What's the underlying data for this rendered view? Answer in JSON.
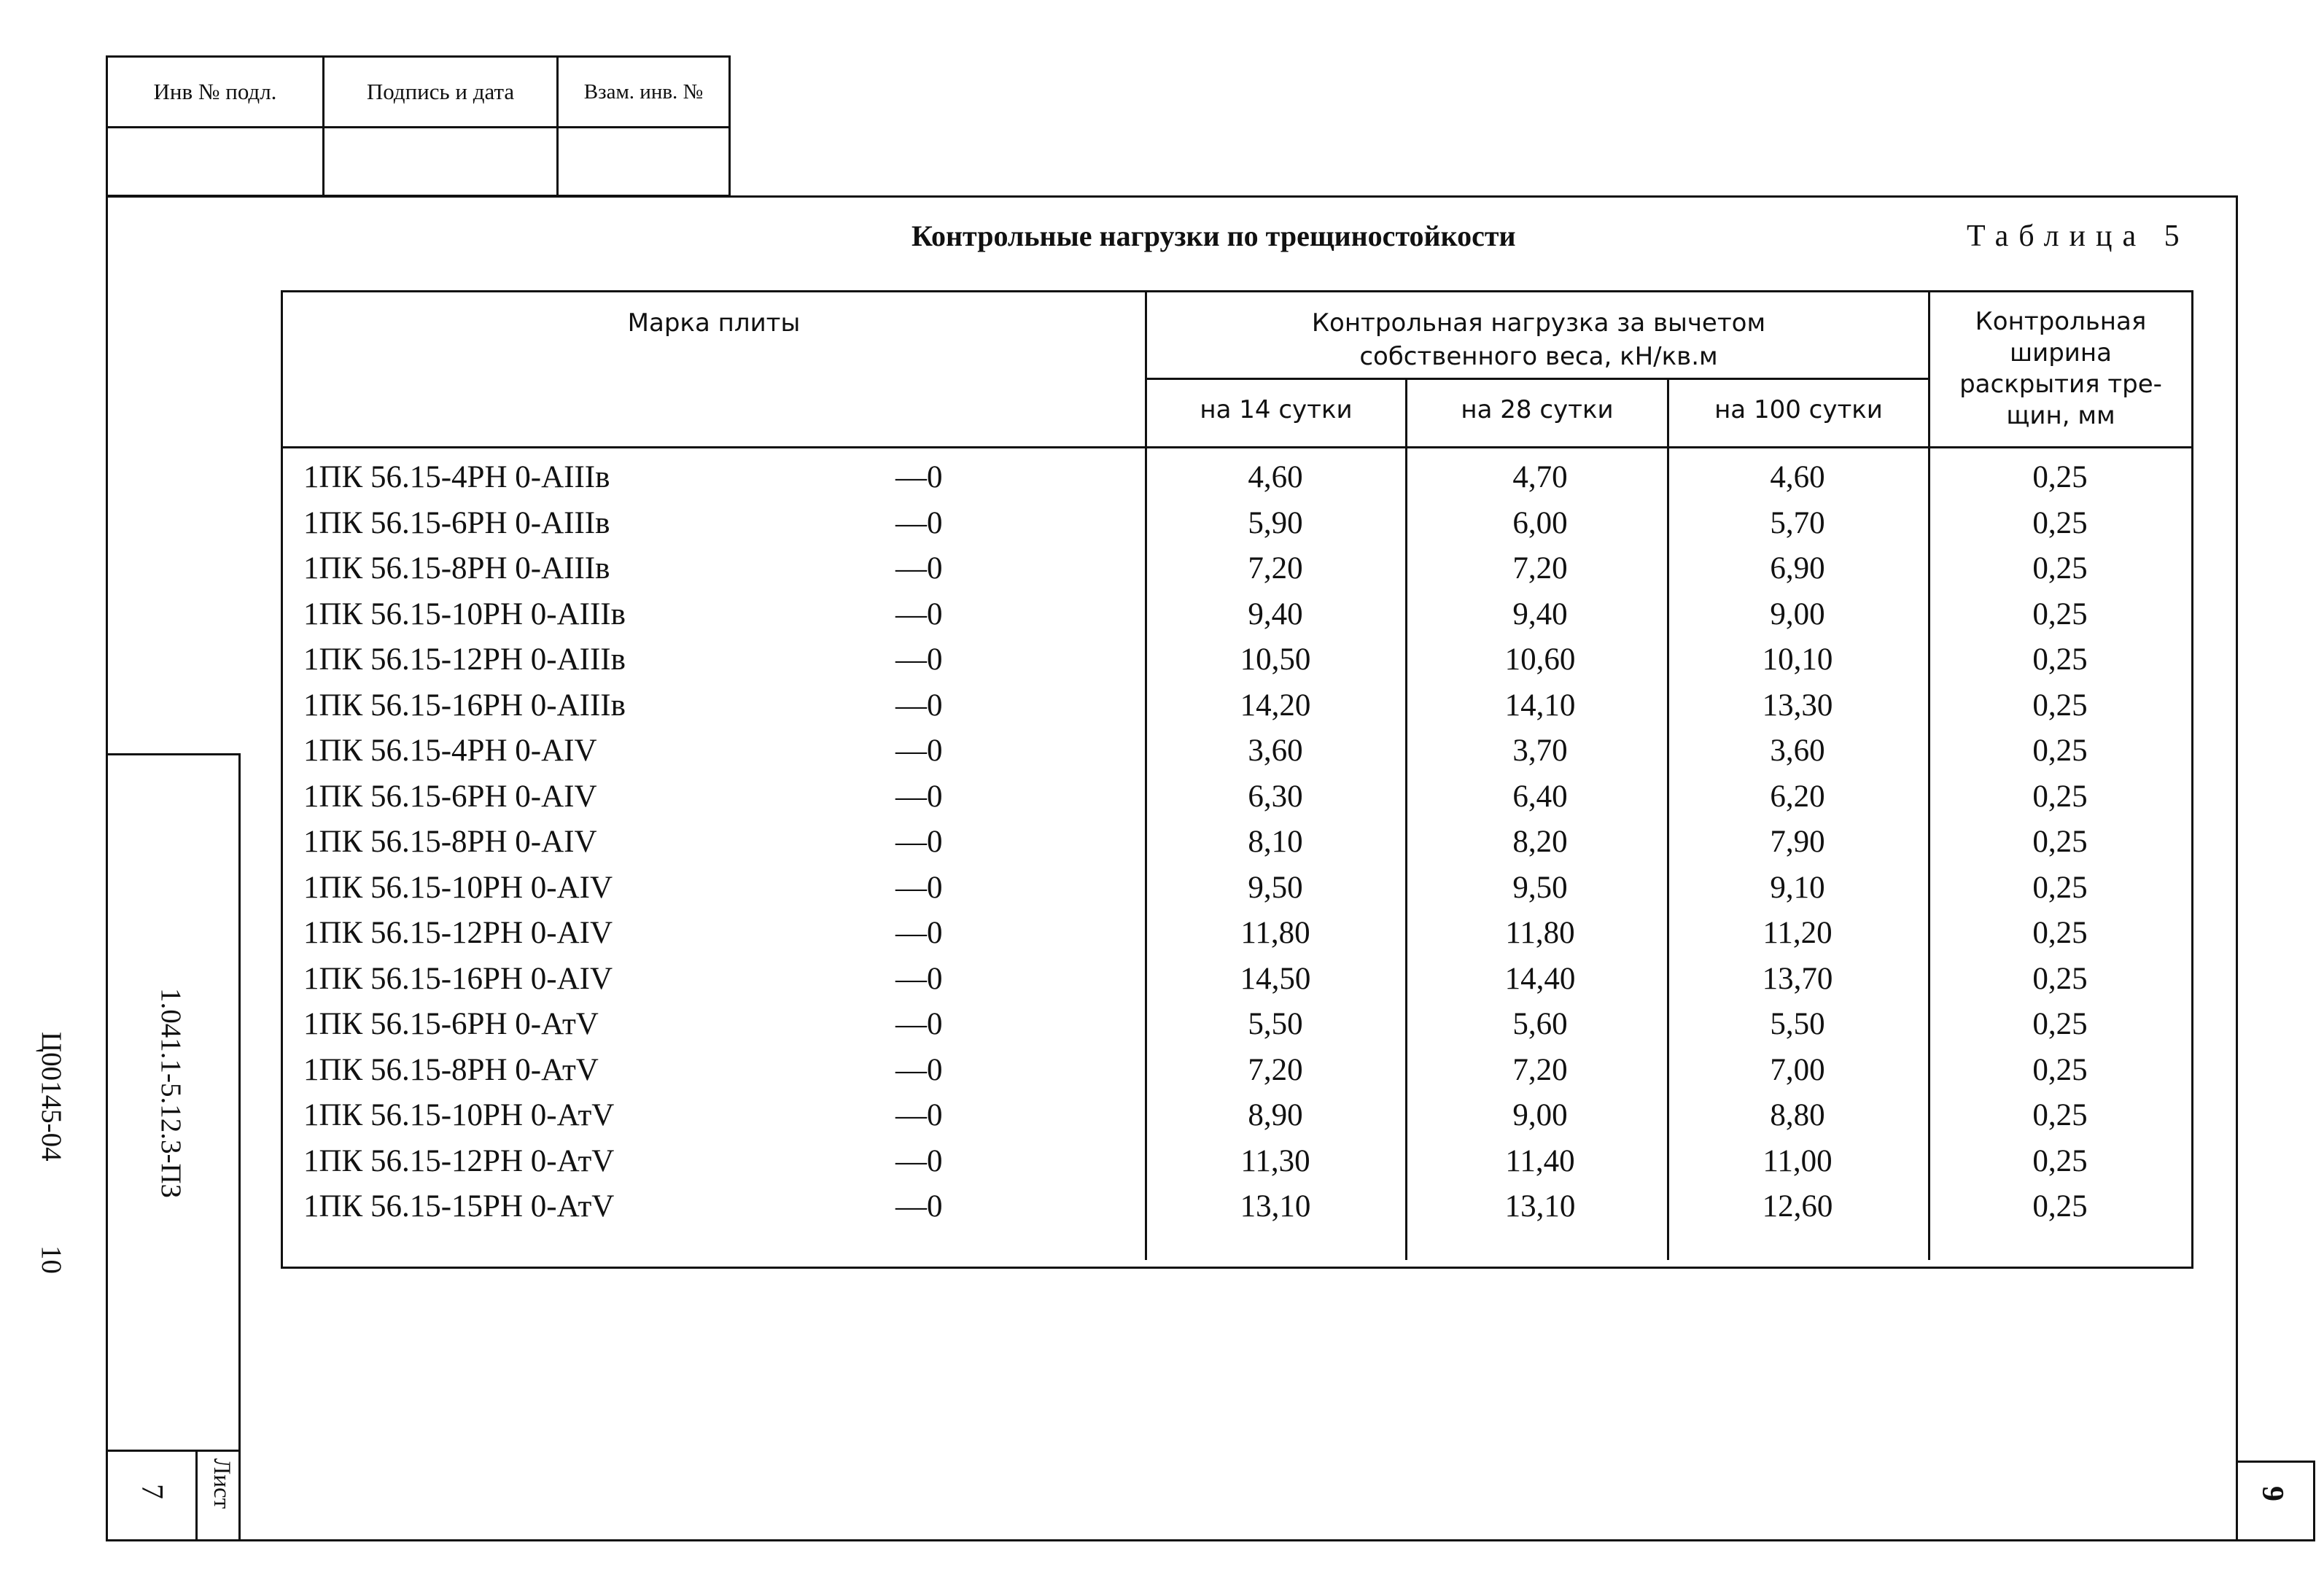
{
  "stamp": {
    "inv_podl": "Инв № подл.",
    "podpis_data": "Подпись и дата",
    "vzam_inv": "Взам. инв. №"
  },
  "document": {
    "title": "Контрольные нагрузки по трещиностойкости",
    "table_label": "Таблица 5"
  },
  "table": {
    "headers": {
      "mark": "Марка плиты",
      "load_group": "Контрольная нагрузка за вычетом собственного веса, кН/кв.м",
      "d14": "на 14 сутки",
      "d28": "на 28 сутки",
      "d100": "на 100 сутки",
      "crack": "Контрольная ширина раскрытия тре-щин, мм"
    },
    "rows": [
      {
        "mark": "1ПК 56.15-4РН 0-АIIIв",
        "suffix": "—0",
        "d14": "4,60",
        "d28": "4,70",
        "d100": "4,60",
        "crack": "0,25"
      },
      {
        "mark": "1ПК 56.15-6РН 0-АIIIв",
        "suffix": "—0",
        "d14": "5,90",
        "d28": "6,00",
        "d100": "5,70",
        "crack": "0,25"
      },
      {
        "mark": "1ПК 56.15-8РН 0-АIIIв",
        "suffix": "—0",
        "d14": "7,20",
        "d28": "7,20",
        "d100": "6,90",
        "crack": "0,25"
      },
      {
        "mark": "1ПК 56.15-10РН 0-АIIIв",
        "suffix": "—0",
        "d14": "9,40",
        "d28": "9,40",
        "d100": "9,00",
        "crack": "0,25"
      },
      {
        "mark": "1ПК 56.15-12РН 0-АIIIв",
        "suffix": "—0",
        "d14": "10,50",
        "d28": "10,60",
        "d100": "10,10",
        "crack": "0,25"
      },
      {
        "mark": "1ПК 56.15-16РН 0-АIIIв",
        "suffix": "—0",
        "d14": "14,20",
        "d28": "14,10",
        "d100": "13,30",
        "crack": "0,25"
      },
      {
        "mark": "1ПК 56.15-4РН 0-АIV",
        "suffix": "—0",
        "d14": "3,60",
        "d28": "3,70",
        "d100": "3,60",
        "crack": "0,25"
      },
      {
        "mark": "1ПК 56.15-6РН 0-АIV",
        "suffix": "—0",
        "d14": "6,30",
        "d28": "6,40",
        "d100": "6,20",
        "crack": "0,25"
      },
      {
        "mark": "1ПК 56.15-8РН 0-АIV",
        "suffix": "—0",
        "d14": "8,10",
        "d28": "8,20",
        "d100": "7,90",
        "crack": "0,25"
      },
      {
        "mark": "1ПК 56.15-10РН 0-АIV",
        "suffix": "—0",
        "d14": "9,50",
        "d28": "9,50",
        "d100": "9,10",
        "crack": "0,25"
      },
      {
        "mark": "1ПК 56.15-12РН 0-АIV",
        "suffix": "—0",
        "d14": "11,80",
        "d28": "11,80",
        "d100": "11,20",
        "crack": "0,25"
      },
      {
        "mark": "1ПК 56.15-16РН 0-АIV",
        "suffix": "—0",
        "d14": "14,50",
        "d28": "14,40",
        "d100": "13,70",
        "crack": "0,25"
      },
      {
        "mark": "1ПК 56.15-6РН 0-АтV",
        "suffix": "—0",
        "d14": "5,50",
        "d28": "5,60",
        "d100": "5,50",
        "crack": "0,25"
      },
      {
        "mark": "1ПК 56.15-8РН 0-АтV",
        "suffix": "—0",
        "d14": "7,20",
        "d28": "7,20",
        "d100": "7,00",
        "crack": "0,25"
      },
      {
        "mark": "1ПК 56.15-10РН 0-АтV",
        "suffix": "—0",
        "d14": "8,90",
        "d28": "9,00",
        "d100": "8,80",
        "crack": "0,25"
      },
      {
        "mark": "1ПК 56.15-12РН 0-АтV",
        "suffix": "—0",
        "d14": "11,30",
        "d28": "11,40",
        "d100": "11,00",
        "crack": "0,25"
      },
      {
        "mark": "1ПК 56.15-15РН 0-АтV",
        "suffix": "—0",
        "d14": "13,10",
        "d28": "13,10",
        "d100": "12,60",
        "crack": "0,25"
      }
    ]
  },
  "side": {
    "doc_code": "1.041.1-5.12.3-ПЗ",
    "archive_code": "Ц00145-04",
    "archive_page": "10",
    "sheet_label": "Лист",
    "sheet_no": "7",
    "page_corner": "9"
  }
}
